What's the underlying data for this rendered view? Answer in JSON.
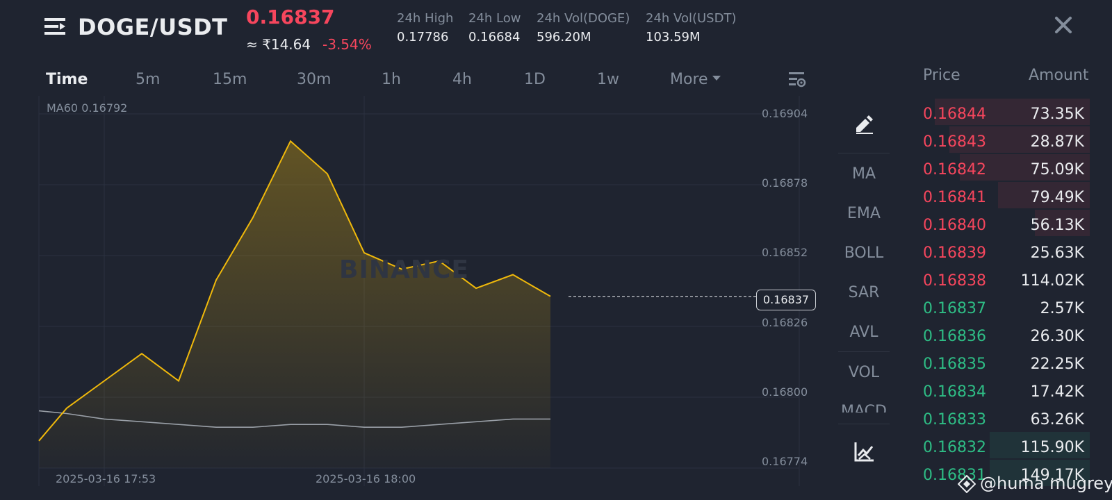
{
  "header": {
    "pair": "DOGE/USDT",
    "last_price": "0.16837",
    "fiat_price": "≈ ₹14.64",
    "change": "-3.54%",
    "stats": [
      {
        "label": "24h High",
        "value": "0.17786"
      },
      {
        "label": "24h Low",
        "value": "0.16684"
      },
      {
        "label": "24h Vol(DOGE)",
        "value": "596.20M"
      },
      {
        "label": "24h Vol(USDT)",
        "value": "103.59M"
      }
    ]
  },
  "intervals": [
    "Time",
    "5m",
    "15m",
    "30m",
    "1h",
    "4h",
    "1D",
    "1w",
    "More"
  ],
  "chart": {
    "ma_label": "MA60 0.16792",
    "y_ticks": [
      "0.16904",
      "0.16878",
      "0.16852",
      "0.16826",
      "0.16800",
      "0.16774"
    ],
    "x_ticks": [
      "2025-03-16 17:53",
      "2025-03-16 18:00"
    ],
    "last_price_label": "0.16837",
    "watermark": "BINANCE"
  },
  "chart_data": {
    "type": "area",
    "ylim": [
      0.16774,
      0.16904
    ],
    "series": [
      {
        "name": "",
        "values": [
          0.16784,
          0.16796,
          0.16806,
          0.16816,
          0.16806,
          0.16843,
          0.16866,
          0.16894,
          0.16882,
          0.16853,
          0.16847,
          0.1685,
          0.1684,
          0.16845,
          0.16837
        ]
      },
      {
        "name": "MA60",
        "values": [
          0.16795,
          0.16794,
          0.16792,
          0.16791,
          0.1679,
          0.16789,
          0.16789,
          0.1679,
          0.1679,
          0.16789,
          0.16789,
          0.1679,
          0.16791,
          0.16792,
          0.16792
        ]
      }
    ]
  },
  "indicators": [
    "MA",
    "EMA",
    "BOLL",
    "SAR",
    "AVL",
    "VOL",
    "MACD"
  ],
  "orderbook": {
    "price_header": "Price",
    "amount_header": "Amount",
    "rows": [
      {
        "price": "0.16844",
        "amount": "73.35K",
        "side": "ask",
        "depth": 0.93
      },
      {
        "price": "0.16843",
        "amount": "28.87K",
        "side": "ask",
        "depth": 0.84
      },
      {
        "price": "0.16842",
        "amount": "75.09K",
        "side": "ask",
        "depth": 0.78
      },
      {
        "price": "0.16841",
        "amount": "79.49K",
        "side": "ask",
        "depth": 0.55
      },
      {
        "price": "0.16840",
        "amount": "56.13K",
        "side": "ask",
        "depth": 0.33
      },
      {
        "price": "0.16839",
        "amount": "25.63K",
        "side": "ask",
        "depth": 0
      },
      {
        "price": "0.16838",
        "amount": "114.02K",
        "side": "ask",
        "depth": 0
      },
      {
        "price": "0.16837",
        "amount": "2.57K",
        "side": "bid",
        "depth": 0
      },
      {
        "price": "0.16836",
        "amount": "26.30K",
        "side": "bid",
        "depth": 0
      },
      {
        "price": "0.16835",
        "amount": "22.25K",
        "side": "bid",
        "depth": 0
      },
      {
        "price": "0.16834",
        "amount": "17.42K",
        "side": "bid",
        "depth": 0
      },
      {
        "price": "0.16833",
        "amount": "63.26K",
        "side": "bid",
        "depth": 0
      },
      {
        "price": "0.16832",
        "amount": "115.90K",
        "side": "bid",
        "depth": 0.6
      },
      {
        "price": "0.16831",
        "amount": "149.17K",
        "side": "bid",
        "depth": 0.6
      }
    ]
  },
  "user_tag": "@huma mugrey",
  "colors": {
    "up": "#2ebd85",
    "down": "#f6465d",
    "line": "#f0b90b",
    "ma": "#9aa0a8"
  }
}
